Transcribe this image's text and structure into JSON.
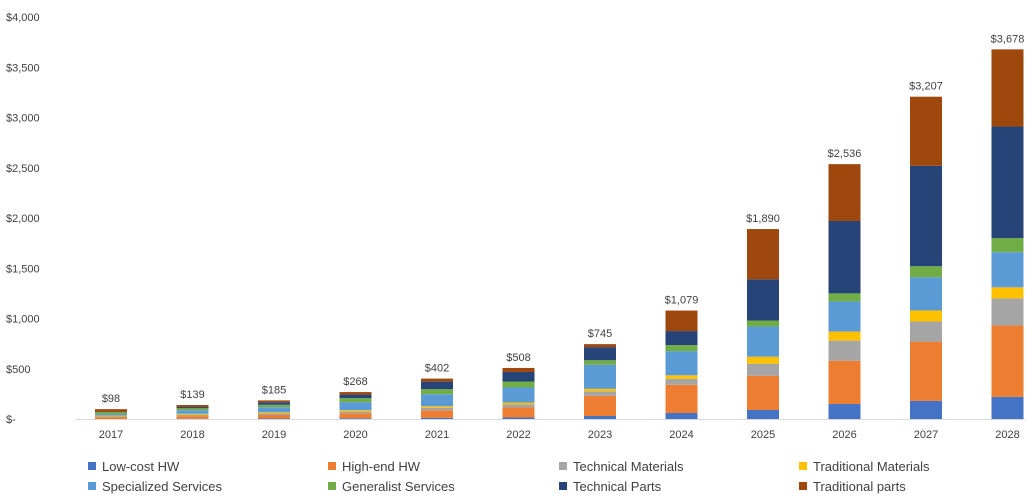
{
  "chart_data": {
    "type": "bar",
    "stacked": true,
    "categories": [
      "2017",
      "2018",
      "2019",
      "2020",
      "2021",
      "2022",
      "2023",
      "2024",
      "2025",
      "2026",
      "2027",
      "2028"
    ],
    "y_tick_labels": [
      "$-",
      "$500",
      "$1,000",
      "$1,500",
      "$2,000",
      "$2,500",
      "$3,000",
      "$3,500",
      "$4,000"
    ],
    "ylim": [
      0,
      4000
    ],
    "grid": false,
    "legend_placement": "bottom",
    "totals": [
      98,
      139,
      185,
      268,
      402,
      508,
      745,
      1079,
      1890,
      2536,
      3207,
      3678
    ],
    "total_labels": [
      "$98",
      "$139",
      "$185",
      "$268",
      "$402",
      "$508",
      "$745",
      "$1,079",
      "$1,890",
      "$2,536",
      "$3,207",
      "$3,678"
    ],
    "series": [
      {
        "name": "Low-cost HW",
        "color": "#4472c4",
        "values": [
          0,
          3,
          5,
          8,
          12,
          15,
          30,
          60,
          90,
          150,
          180,
          220
        ]
      },
      {
        "name": "High-end HW",
        "color": "#ed7d31",
        "values": [
          15,
          25,
          35,
          50,
          75,
          100,
          200,
          280,
          340,
          430,
          590,
          710
        ]
      },
      {
        "name": "Technical Materials",
        "color": "#a5a5a5",
        "values": [
          10,
          12,
          15,
          18,
          25,
          30,
          45,
          60,
          120,
          200,
          200,
          270
        ]
      },
      {
        "name": "Traditional Materials",
        "color": "#ffc000",
        "values": [
          10,
          12,
          12,
          12,
          15,
          18,
          25,
          35,
          70,
          90,
          110,
          110
        ]
      },
      {
        "name": "Specialized Services",
        "color": "#5b9bd5",
        "values": [
          20,
          35,
          50,
          80,
          120,
          150,
          240,
          240,
          300,
          300,
          330,
          350
        ]
      },
      {
        "name": "Generalist Services",
        "color": "#70ad47",
        "values": [
          15,
          20,
          25,
          40,
          50,
          60,
          45,
          60,
          60,
          80,
          110,
          140
        ]
      },
      {
        "name": "Technical Parts",
        "color": "#264478",
        "values": [
          0,
          12,
          25,
          35,
          75,
          95,
          130,
          140,
          410,
          720,
          1000,
          1110
        ]
      },
      {
        "name": "Traditional parts",
        "color": "#9e480e",
        "values": [
          28,
          20,
          18,
          25,
          30,
          40,
          30,
          204,
          500,
          566,
          687,
          768
        ]
      }
    ]
  }
}
